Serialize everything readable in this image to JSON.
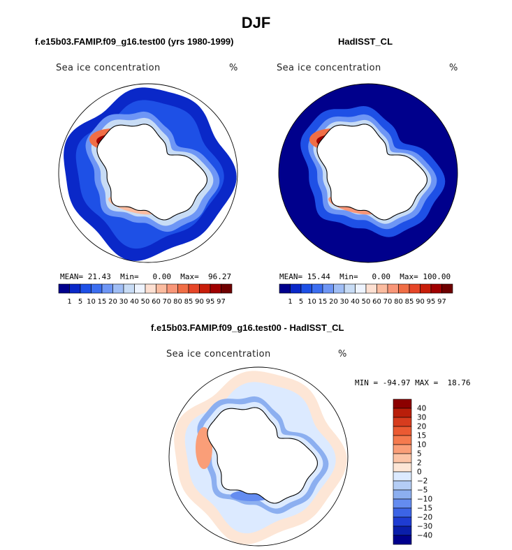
{
  "figure": {
    "suptitle": "DJF"
  },
  "chart_data": [
    {
      "type": "heatmap",
      "name": "model-climatology",
      "title": "f.e15b03.FAMIP.f09_g16.test00 (yrs 1980-1999)",
      "variable": "Sea ice concentration",
      "units": "%",
      "projection": "south-polar-stereographic",
      "stats": {
        "mean_label": "MEAN=",
        "mean": "21.43",
        "min_label": "Min=",
        "min": "0.00",
        "max_label": "Max=",
        "max": "96.27"
      },
      "levels": [
        "1",
        "5",
        "10",
        "15",
        "20",
        "30",
        "40",
        "50",
        "60",
        "70",
        "80",
        "85",
        "90",
        "95",
        "97"
      ],
      "colors": [
        "#00008c",
        "#0a28c8",
        "#1e50e6",
        "#3c6ef0",
        "#6e96f5",
        "#a0bef5",
        "#c8dcf5",
        "#eef4ff",
        "#fde0d2",
        "#fbbca0",
        "#f89678",
        "#f06e46",
        "#e64628",
        "#c81e0a",
        "#a00000",
        "#6e0000"
      ]
    },
    {
      "type": "heatmap",
      "name": "observed-climatology",
      "title": "HadISST_CL",
      "variable": "Sea ice concentration",
      "units": "%",
      "projection": "south-polar-stereographic",
      "stats": {
        "mean_label": "MEAN=",
        "mean": "15.44",
        "min_label": "Min=",
        "min": "0.00",
        "max_label": "Max=",
        "max": "100.00"
      },
      "levels": [
        "1",
        "5",
        "10",
        "15",
        "20",
        "30",
        "40",
        "50",
        "60",
        "70",
        "80",
        "85",
        "90",
        "95",
        "97"
      ],
      "colors": [
        "#00008c",
        "#0a28c8",
        "#1e50e6",
        "#3c6ef0",
        "#6e96f5",
        "#a0bef5",
        "#c8dcf5",
        "#eef4ff",
        "#fde0d2",
        "#fbbca0",
        "#f89678",
        "#f06e46",
        "#e64628",
        "#c81e0a",
        "#a00000",
        "#6e0000"
      ]
    },
    {
      "type": "heatmap",
      "name": "difference",
      "title": "f.e15b03.FAMIP.f09_g16.test00 - HadISST_CL",
      "variable": "Sea ice concentration",
      "units": "%",
      "projection": "south-polar-stereographic",
      "stats": {
        "min_label": "MIN =",
        "min": "-94.97",
        "max_label": "MAX =",
        "max": "18.76"
      },
      "levels": [
        "40",
        "30",
        "20",
        "15",
        "10",
        "5",
        "2",
        "0",
        "−2",
        "−5",
        "−10",
        "−15",
        "−20",
        "−30",
        "−40"
      ],
      "colors": [
        "#8c0000",
        "#b91e0a",
        "#d73c1e",
        "#eb5a32",
        "#f57a4e",
        "#fa9e78",
        "#fcc4a6",
        "#fde6d6",
        "#dceaff",
        "#b4cdf5",
        "#8caff0",
        "#648cf0",
        "#3c64e6",
        "#1e3cd2",
        "#0a1eaa",
        "#00008c"
      ]
    }
  ]
}
